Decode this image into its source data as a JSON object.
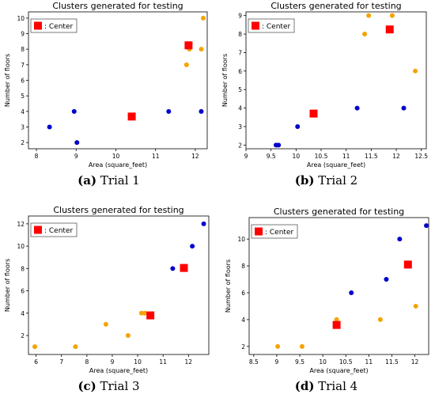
{
  "colors": {
    "center": "#ff0000",
    "cluster_a": "#0000cc",
    "cluster_b": "#f5a300",
    "axis": "#000000"
  },
  "captions": [
    {
      "tag": "(a)",
      "text": " Trial 1"
    },
    {
      "tag": "(b)",
      "text": " Trial 2"
    },
    {
      "tag": "(c)",
      "text": " Trial 3"
    },
    {
      "tag": "(d)",
      "text": " Trial 4"
    }
  ],
  "chart_data": [
    {
      "type": "scatter",
      "title": "Clusters generated for testing",
      "xlabel": "Area (square_feet)",
      "ylabel": "Number of floors",
      "xlim": [
        7.8,
        12.3
      ],
      "ylim": [
        1.6,
        10.4
      ],
      "xticks": [
        8,
        9,
        10,
        11,
        12
      ],
      "yticks": [
        2,
        3,
        4,
        5,
        6,
        7,
        8,
        9,
        10
      ],
      "legend": {
        "label": ": Center",
        "placement": "top-left"
      },
      "series": [
        {
          "color": "blue",
          "points": [
            [
              8.33,
              3
            ],
            [
              8.95,
              4
            ],
            [
              9.02,
              2
            ],
            [
              11.33,
              4
            ],
            [
              12.15,
              4
            ]
          ]
        },
        {
          "color": "orange",
          "points": [
            [
              11.78,
              7
            ],
            [
              11.85,
              8
            ],
            [
              12.15,
              8
            ],
            [
              12.2,
              10
            ]
          ]
        },
        {
          "name": "Center",
          "marker": "square",
          "color": "red",
          "points": [
            [
              10.4,
              3.67
            ],
            [
              11.83,
              8.25
            ]
          ]
        }
      ]
    },
    {
      "type": "scatter",
      "title": "Clusters generated for testing",
      "xlabel": "Area (square_feet)",
      "ylabel": "Number of floors",
      "xlim": [
        9.0,
        12.6
      ],
      "ylim": [
        1.8,
        9.2
      ],
      "xticks": [
        9.0,
        9.5,
        10.0,
        10.5,
        11.0,
        11.5,
        12.0,
        12.5
      ],
      "yticks": [
        2,
        3,
        4,
        5,
        6,
        7,
        8,
        9
      ],
      "legend": {
        "label": ": Center",
        "placement": "top-left"
      },
      "series": [
        {
          "color": "blue",
          "points": [
            [
              9.6,
              2
            ],
            [
              9.65,
              2
            ],
            [
              10.03,
              3
            ],
            [
              11.22,
              4
            ],
            [
              12.15,
              4
            ]
          ]
        },
        {
          "color": "orange",
          "points": [
            [
              11.37,
              8
            ],
            [
              11.45,
              9
            ],
            [
              11.92,
              9
            ],
            [
              12.38,
              6
            ]
          ]
        },
        {
          "name": "Center",
          "marker": "square",
          "color": "red",
          "points": [
            [
              10.35,
              3.7
            ],
            [
              11.87,
              8.25
            ]
          ]
        }
      ]
    },
    {
      "type": "scatter",
      "title": "Clusters generated for testing",
      "xlabel": "Area (square_feet)",
      "ylabel": "Number of floors",
      "xlim": [
        5.7,
        12.8
      ],
      "ylim": [
        0.3,
        12.7
      ],
      "xticks": [
        6,
        7,
        8,
        9,
        10,
        11,
        12
      ],
      "yticks": [
        2,
        4,
        6,
        8,
        10,
        12
      ],
      "legend": {
        "label": ": Center",
        "placement": "top-left"
      },
      "series": [
        {
          "color": "blue",
          "points": [
            [
              11.38,
              8
            ],
            [
              12.15,
              10
            ],
            [
              12.6,
              12
            ]
          ]
        },
        {
          "color": "orange",
          "points": [
            [
              5.95,
              1
            ],
            [
              7.55,
              1
            ],
            [
              8.75,
              3
            ],
            [
              9.62,
              2
            ],
            [
              10.15,
              4
            ],
            [
              10.28,
              4
            ]
          ]
        },
        {
          "name": "Center",
          "marker": "square",
          "color": "red",
          "points": [
            [
              10.5,
              3.8
            ],
            [
              11.82,
              8.05
            ]
          ]
        }
      ]
    },
    {
      "type": "scatter",
      "title": "Clusters generated for testing",
      "xlabel": "Area (square_feet)",
      "ylabel": "Number of floors",
      "xlim": [
        8.4,
        12.3
      ],
      "ylim": [
        1.4,
        11.6
      ],
      "xticks": [
        8.5,
        9.0,
        9.5,
        10.0,
        10.5,
        11.0,
        11.5,
        12.0
      ],
      "yticks": [
        2,
        4,
        6,
        8,
        10
      ],
      "legend": {
        "label": ": Center",
        "placement": "top-left"
      },
      "series": [
        {
          "color": "blue",
          "points": [
            [
              10.62,
              6
            ],
            [
              11.38,
              7
            ],
            [
              11.67,
              10
            ],
            [
              12.25,
              11
            ]
          ]
        },
        {
          "color": "orange",
          "points": [
            [
              9.02,
              2
            ],
            [
              9.55,
              2
            ],
            [
              10.3,
              4
            ],
            [
              11.25,
              4
            ],
            [
              12.02,
              5
            ]
          ]
        },
        {
          "name": "Center",
          "marker": "square",
          "color": "red",
          "points": [
            [
              10.3,
              3.6
            ],
            [
              11.85,
              8.1
            ]
          ]
        }
      ]
    }
  ]
}
